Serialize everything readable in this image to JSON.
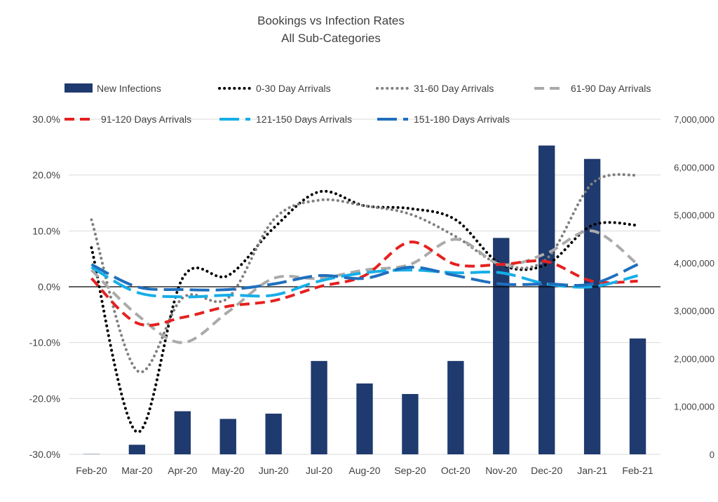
{
  "chart_data": {
    "type": "bar+line",
    "title": "Bookings vs Infection Rates",
    "subtitle": "All Sub-Categories",
    "categories": [
      "Feb-20",
      "Mar-20",
      "Apr-20",
      "May-20",
      "Jun-20",
      "Jul-20",
      "Aug-20",
      "Sep-20",
      "Oct-20",
      "Nov-20",
      "Dec-20",
      "Jan-21",
      "Feb-21"
    ],
    "left_axis": {
      "ylim": [
        -30,
        30
      ],
      "ticks": [
        -30,
        -20,
        -10,
        0,
        10,
        20,
        30
      ],
      "tick_labels": [
        "-30.0%",
        "-20.0%",
        "-10.0%",
        "0.0%",
        "10.0%",
        "20.0%",
        "30.0%"
      ]
    },
    "right_axis": {
      "ylim": [
        0,
        7000000
      ],
      "ticks": [
        0,
        1000000,
        2000000,
        3000000,
        4000000,
        5000000,
        6000000,
        7000000
      ],
      "tick_labels": [
        "0",
        "1,000,000",
        "2,000,000",
        "3,000,000",
        "4,000,000",
        "5,000,000",
        "6,000,000",
        "7,000,000"
      ]
    },
    "bars": {
      "name": "New Infections",
      "color": "#1f3a6e",
      "values": [
        5000,
        200000,
        900000,
        740000,
        850000,
        1950000,
        1480000,
        1260000,
        1950000,
        4520000,
        6450000,
        6170000,
        2420000
      ]
    },
    "series": [
      {
        "name": "0-30 Day Arrivals",
        "color": "#000000",
        "style": "dotted",
        "values": [
          7.0,
          -26.0,
          1.5,
          2.0,
          10.5,
          17.0,
          14.5,
          14.0,
          12.0,
          4.0,
          4.0,
          11.0,
          11.0
        ]
      },
      {
        "name": "31-60 Day Arrivals",
        "color": "#7f7f7f",
        "style": "dotted",
        "values": [
          12.0,
          -15.0,
          -2.0,
          -2.0,
          12.0,
          15.5,
          14.5,
          13.0,
          9.0,
          4.0,
          5.0,
          18.5,
          20.0
        ]
      },
      {
        "name": "61-90 Day Arrivals",
        "color": "#aaaaaa",
        "style": "dashed",
        "values": [
          3.0,
          -5.0,
          -10.0,
          -4.5,
          1.5,
          1.5,
          3.0,
          4.0,
          8.5,
          4.0,
          6.0,
          10.0,
          4.0
        ]
      },
      {
        "name": "91-120 Days Arrivals",
        "color": "#e62020",
        "style": "dashed",
        "values": [
          1.5,
          -6.5,
          -5.5,
          -3.5,
          -2.5,
          0.0,
          2.0,
          8.0,
          4.0,
          4.0,
          4.5,
          1.0,
          1.0
        ]
      },
      {
        "name": "121-150 Days Arrivals",
        "color": "#16aee8",
        "style": "longdash",
        "values": [
          3.5,
          -1.0,
          -1.8,
          -1.5,
          -1.5,
          1.0,
          2.5,
          3.0,
          2.5,
          2.5,
          0.5,
          0.0,
          2.0
        ]
      },
      {
        "name": "151-180 Days Arrivals",
        "color": "#1f6fbd",
        "style": "longdash",
        "values": [
          4.0,
          0.0,
          -0.5,
          -0.5,
          0.5,
          2.0,
          1.5,
          3.5,
          2.0,
          0.5,
          0.5,
          0.5,
          4.0
        ]
      }
    ],
    "legend_position": "top",
    "grid": true
  }
}
